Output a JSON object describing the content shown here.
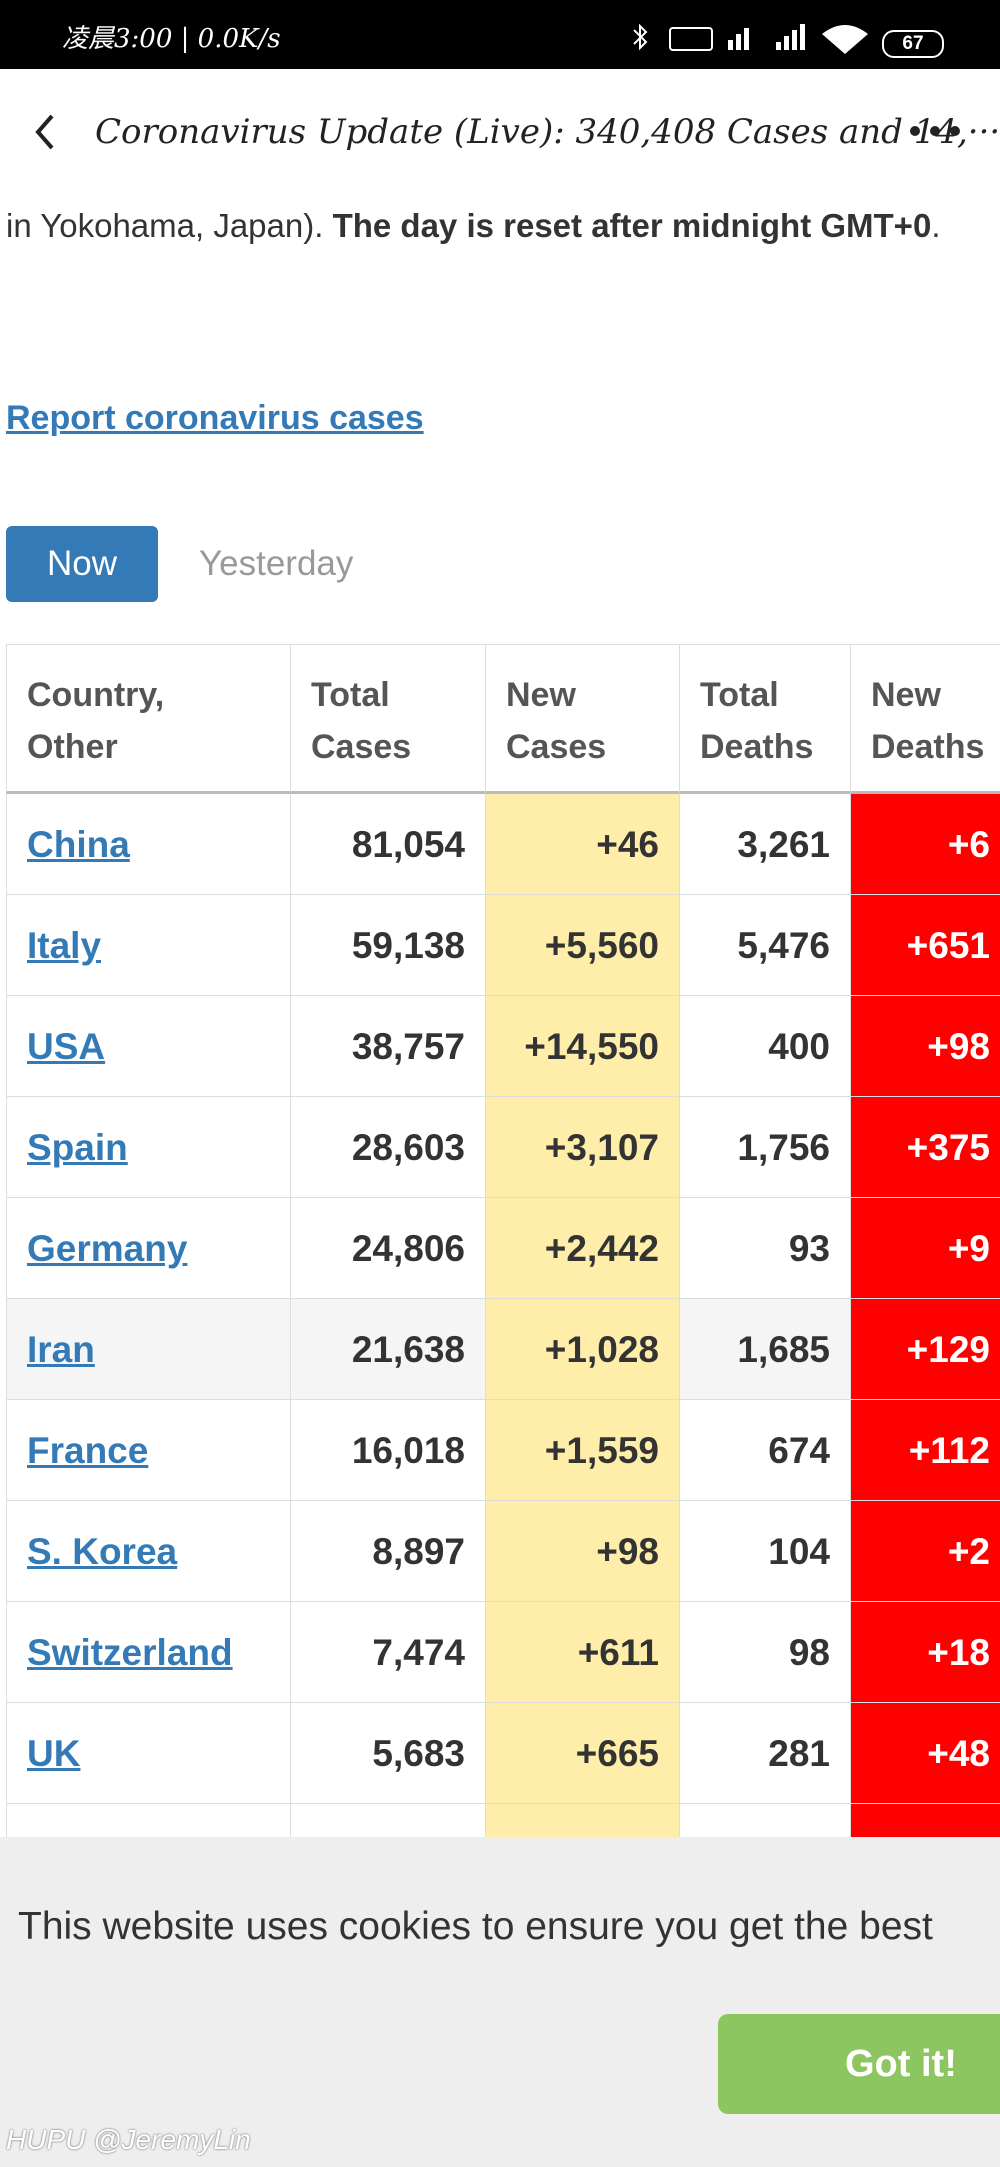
{
  "status_bar": {
    "left": "凌晨3:00 | 0.0K/s",
    "battery": "67"
  },
  "header": {
    "title": "Coronavirus Update (Live): 340,408 Cases and 14,···"
  },
  "intro": {
    "text": "in Yokohama, Japan). ",
    "bold": "The day is reset after midnight GMT+0",
    "end": "."
  },
  "link": "Report coronavirus cases",
  "tabs": [
    "Now",
    "Yesterday"
  ],
  "table": {
    "columns": [
      "Country,\nOther",
      "Total\nCases",
      "New\nCases",
      "Total\nDeaths",
      "New\nDeaths"
    ],
    "rows": [
      [
        "China",
        "81,054",
        "+46",
        "3,261",
        "+6"
      ],
      [
        "Italy",
        "59,138",
        "+5,560",
        "5,476",
        "+651"
      ],
      [
        "USA",
        "38,757",
        "+14,550",
        "400",
        "+98"
      ],
      [
        "Spain",
        "28,603",
        "+3,107",
        "1,756",
        "+375"
      ],
      [
        "Germany",
        "24,806",
        "+2,442",
        "93",
        "+9"
      ],
      [
        "Iran",
        "21,638",
        "+1,028",
        "1,685",
        "+129"
      ],
      [
        "France",
        "16,018",
        "+1,559",
        "674",
        "+112"
      ],
      [
        "S. Korea",
        "8,897",
        "+98",
        "104",
        "+2"
      ],
      [
        "Switzerland",
        "7,474",
        "+611",
        "98",
        "+18"
      ],
      [
        "UK",
        "5,683",
        "+665",
        "281",
        "+48"
      ]
    ]
  },
  "cookie": {
    "text": "This website uses cookies to ensure you get the best",
    "button": "Got it!"
  },
  "watermark": "HUPU @JeremyLin"
}
